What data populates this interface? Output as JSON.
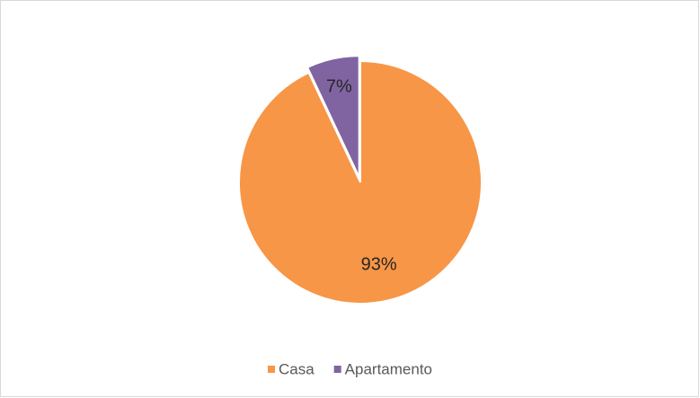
{
  "chart_data": {
    "type": "pie",
    "categories": [
      "Casa",
      "Apartamento"
    ],
    "values": [
      93,
      7
    ],
    "value_labels": [
      "93%",
      "7%"
    ],
    "colors": [
      "#F79646",
      "#8064A2"
    ],
    "legend": "bottom"
  }
}
